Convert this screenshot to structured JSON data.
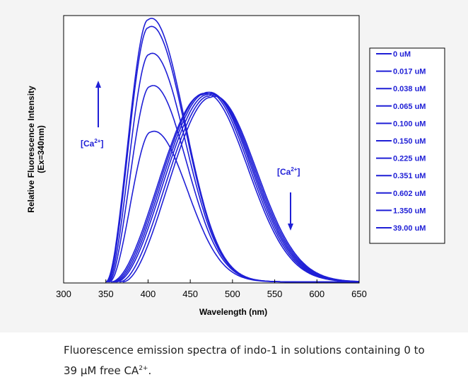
{
  "chart_data": {
    "type": "line",
    "xlabel": "Wavelength (nm)",
    "ylabel_line1": "Relative Fluorescence Intensity",
    "ylabel_line2": "(Ex=340nm)",
    "xlim": [
      300,
      650
    ],
    "ylim": [
      0,
      1
    ],
    "x_ticks": [
      "300",
      "350",
      "400",
      "450",
      "500",
      "550",
      "600",
      "650"
    ],
    "grid": false,
    "legend_position": "right",
    "color": "#1f1fd6",
    "series": [
      {
        "name": "0 uM",
        "peak_x": 474,
        "peak_y": 0.69,
        "onset": 370
      },
      {
        "name": "0.017 uM",
        "peak_x": 472,
        "peak_y": 0.695,
        "onset": 366
      },
      {
        "name": "0.038 uM",
        "peak_x": 470,
        "peak_y": 0.7,
        "onset": 362
      },
      {
        "name": "0.065 uM",
        "peak_x": 468,
        "peak_y": 0.705,
        "onset": 360
      },
      {
        "name": "0.100 uM",
        "peak_x": 466,
        "peak_y": 0.705,
        "onset": 358
      },
      {
        "name": "0.150 uM",
        "peak_x": 464,
        "peak_y": 0.7,
        "onset": 356
      },
      {
        "name": "0.225 uM",
        "peak_x": 403,
        "peak_y": 0.56,
        "onset": 354
      },
      {
        "name": "0.351 uM",
        "peak_x": 402,
        "peak_y": 0.73,
        "onset": 353
      },
      {
        "name": "0.602 uM",
        "peak_x": 401,
        "peak_y": 0.85,
        "onset": 352
      },
      {
        "name": "1.350 uM",
        "peak_x": 400,
        "peak_y": 0.95,
        "onset": 351
      },
      {
        "name": "39.00 uM",
        "peak_x": 400,
        "peak_y": 0.98,
        "onset": 350
      }
    ],
    "annotations": [
      {
        "text_main": "[Ca",
        "text_sup": "2+",
        "text_end": "]",
        "direction": "up"
      },
      {
        "text_main": "[Ca",
        "text_sup": "2+",
        "text_end": "]",
        "direction": "down"
      }
    ]
  },
  "caption": {
    "text": "Fluorescence emission spectra of indo-1 in solutions containing 0 to 39 μM free CA",
    "sup": "2+",
    "end": "."
  }
}
